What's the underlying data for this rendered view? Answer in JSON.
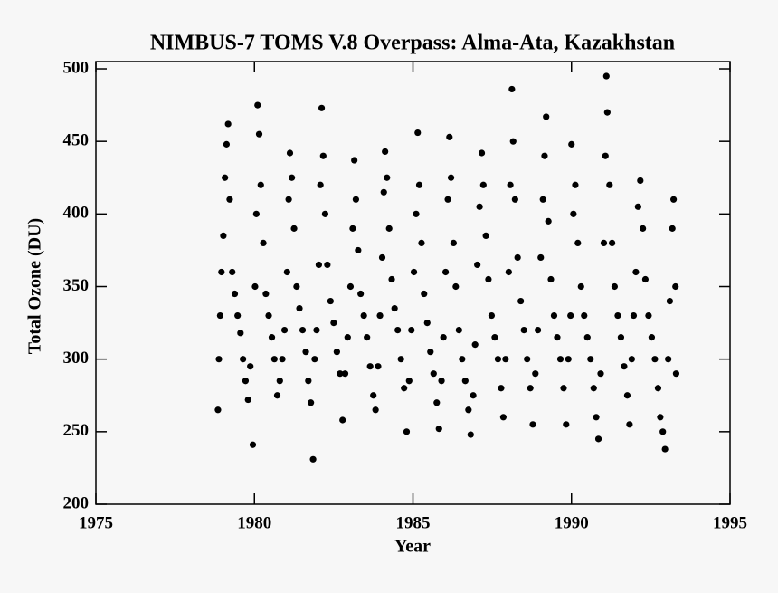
{
  "chart_data": {
    "type": "scatter",
    "title": "NIMBUS-7 TOMS V.8 Overpass: Alma-Ata, Kazakhstan",
    "x_label": "Year",
    "y_label": "Total Ozone (DU)",
    "color": "#000000",
    "xlim": [
      1975,
      1995
    ],
    "xticks": [
      1975,
      1980,
      1985,
      1990,
      1995
    ],
    "ylim": [
      200,
      505
    ],
    "yticks": [
      200,
      250,
      300,
      350,
      400,
      450,
      500
    ],
    "x": [
      1978.85,
      1978.88,
      1978.92,
      1978.96,
      1979.02,
      1979.07,
      1979.12,
      1979.17,
      1979.22,
      1979.3,
      1979.38,
      1979.47,
      1979.56,
      1979.64,
      1979.72,
      1979.8,
      1979.87,
      1979.95,
      1980.02,
      1980.06,
      1980.1,
      1980.15,
      1980.2,
      1980.28,
      1980.36,
      1980.45,
      1980.55,
      1980.63,
      1980.72,
      1980.8,
      1980.88,
      1980.95,
      1981.03,
      1981.08,
      1981.12,
      1981.18,
      1981.25,
      1981.33,
      1981.42,
      1981.52,
      1981.62,
      1981.7,
      1981.78,
      1981.85,
      1981.9,
      1981.96,
      1982.03,
      1982.08,
      1982.12,
      1982.17,
      1982.23,
      1982.3,
      1982.4,
      1982.5,
      1982.6,
      1982.7,
      1982.78,
      1982.86,
      1982.94,
      1983.03,
      1983.1,
      1983.15,
      1983.2,
      1983.27,
      1983.35,
      1983.45,
      1983.55,
      1983.65,
      1983.75,
      1983.82,
      1983.9,
      1983.96,
      1984.03,
      1984.08,
      1984.12,
      1984.18,
      1984.25,
      1984.33,
      1984.42,
      1984.52,
      1984.62,
      1984.72,
      1984.8,
      1984.88,
      1984.95,
      1985.03,
      1985.1,
      1985.15,
      1985.2,
      1985.27,
      1985.35,
      1985.45,
      1985.55,
      1985.65,
      1985.75,
      1985.82,
      1985.9,
      1985.96,
      1986.03,
      1986.1,
      1986.15,
      1986.2,
      1986.28,
      1986.35,
      1986.45,
      1986.55,
      1986.65,
      1986.75,
      1986.82,
      1986.9,
      1986.96,
      1987.03,
      1987.1,
      1987.17,
      1987.22,
      1987.3,
      1987.38,
      1987.48,
      1987.58,
      1987.68,
      1987.78,
      1987.85,
      1987.92,
      1988.02,
      1988.07,
      1988.12,
      1988.16,
      1988.22,
      1988.3,
      1988.4,
      1988.5,
      1988.6,
      1988.7,
      1988.78,
      1988.86,
      1988.94,
      1989.03,
      1989.1,
      1989.15,
      1989.2,
      1989.27,
      1989.35,
      1989.45,
      1989.55,
      1989.65,
      1989.75,
      1989.83,
      1989.9,
      1989.97,
      1990.0,
      1990.06,
      1990.12,
      1990.2,
      1990.3,
      1990.4,
      1990.5,
      1990.6,
      1990.7,
      1990.78,
      1990.85,
      1990.92,
      1991.02,
      1991.07,
      1991.1,
      1991.13,
      1991.2,
      1991.28,
      1991.36,
      1991.46,
      1991.56,
      1991.66,
      1991.76,
      1991.83,
      1991.9,
      1991.96,
      1992.03,
      1992.1,
      1992.17,
      1992.25,
      1992.33,
      1992.43,
      1992.53,
      1992.63,
      1992.73,
      1992.8,
      1992.88,
      1992.95,
      1993.05,
      1993.1,
      1993.18,
      1993.22,
      1993.28,
      1993.3
    ],
    "values": [
      265,
      300,
      330,
      360,
      385,
      425,
      448,
      462,
      410,
      360,
      345,
      330,
      318,
      300,
      285,
      272,
      295,
      241,
      350,
      400,
      475,
      455,
      420,
      380,
      345,
      330,
      315,
      300,
      275,
      285,
      300,
      320,
      360,
      410,
      442,
      425,
      390,
      350,
      335,
      320,
      305,
      285,
      270,
      231,
      300,
      320,
      365,
      420,
      473,
      440,
      400,
      365,
      340,
      325,
      305,
      290,
      258,
      290,
      315,
      350,
      390,
      437,
      410,
      375,
      345,
      330,
      315,
      295,
      275,
      265,
      295,
      330,
      370,
      415,
      443,
      425,
      390,
      355,
      335,
      320,
      300,
      280,
      250,
      285,
      320,
      360,
      400,
      456,
      420,
      380,
      345,
      325,
      305,
      290,
      270,
      252,
      285,
      315,
      360,
      410,
      453,
      425,
      380,
      350,
      320,
      300,
      285,
      265,
      248,
      275,
      310,
      365,
      405,
      442,
      420,
      385,
      355,
      330,
      315,
      300,
      280,
      260,
      300,
      360,
      420,
      486,
      450,
      410,
      370,
      340,
      320,
      300,
      280,
      255,
      290,
      320,
      370,
      410,
      440,
      467,
      395,
      355,
      330,
      315,
      300,
      280,
      255,
      300,
      330,
      448,
      400,
      420,
      380,
      350,
      330,
      315,
      300,
      280,
      260,
      245,
      290,
      380,
      440,
      495,
      470,
      420,
      380,
      350,
      330,
      315,
      295,
      275,
      255,
      300,
      330,
      360,
      405,
      423,
      390,
      355,
      330,
      315,
      300,
      280,
      260,
      250,
      238,
      300,
      340,
      390,
      410,
      350,
      290
    ]
  }
}
